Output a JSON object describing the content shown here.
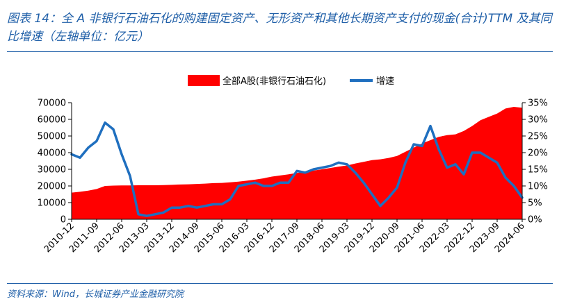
{
  "header": {
    "title": "图表 14：全 A 非银行石油石化的购建固定资产、无形资产和其他长期资产支付的现金(合计)TTM 及其同比增速（左轴单位：亿元）"
  },
  "footer": {
    "source": "资料来源：Wind，长城证券产业金融研究院"
  },
  "colors": {
    "area": "#ff0000",
    "line": "#1f6fbf",
    "accent": "#1f5fa8"
  },
  "chart_data": {
    "type": "area",
    "legend_position": "top",
    "grid": false,
    "x_tick_labels": [
      "2010-12",
      "2011-09",
      "2012-06",
      "2013-03",
      "2013-12",
      "2014-09",
      "2015-06",
      "2016-03",
      "2016-12",
      "2017-09",
      "2018-06",
      "2019-03",
      "2019-12",
      "2020-09",
      "2021-06",
      "2022-03",
      "2022-12",
      "2023-09",
      "2024-06"
    ],
    "y_left": {
      "min": 0,
      "max": 70000,
      "ticks": [
        "0",
        "10000",
        "20000",
        "30000",
        "40000",
        "50000",
        "60000",
        "70000"
      ]
    },
    "y_right": {
      "min": 0,
      "max": 35,
      "ticks": [
        "0%",
        "5%",
        "10%",
        "15%",
        "20%",
        "25%",
        "30%",
        "35%"
      ]
    },
    "x": [
      "2010-12",
      "2011-03",
      "2011-06",
      "2011-09",
      "2011-12",
      "2012-03",
      "2012-06",
      "2012-09",
      "2012-12",
      "2013-03",
      "2013-06",
      "2013-09",
      "2013-12",
      "2014-03",
      "2014-06",
      "2014-09",
      "2014-12",
      "2015-03",
      "2015-06",
      "2015-09",
      "2015-12",
      "2016-03",
      "2016-06",
      "2016-09",
      "2016-12",
      "2017-03",
      "2017-06",
      "2017-09",
      "2017-12",
      "2018-03",
      "2018-06",
      "2018-09",
      "2018-12",
      "2019-03",
      "2019-06",
      "2019-09",
      "2019-12",
      "2020-03",
      "2020-06",
      "2020-09",
      "2020-12",
      "2021-03",
      "2021-06",
      "2021-09",
      "2021-12",
      "2022-03",
      "2022-06",
      "2022-09",
      "2022-12",
      "2023-03",
      "2023-06",
      "2023-09",
      "2023-12",
      "2024-03",
      "2024-06"
    ],
    "series": [
      {
        "name": "全部A股(非银行石油石化)",
        "axis": "left",
        "type": "area",
        "values": [
          16000,
          16500,
          17200,
          18200,
          20000,
          20200,
          20300,
          20300,
          20400,
          20400,
          20400,
          20500,
          20700,
          20900,
          21000,
          21200,
          21400,
          21700,
          21800,
          22200,
          22600,
          23200,
          23800,
          24600,
          25600,
          26300,
          27000,
          27800,
          28600,
          29200,
          30000,
          30800,
          31600,
          32300,
          33500,
          34500,
          35500,
          36000,
          36800,
          38000,
          40500,
          43000,
          45500,
          47500,
          49500,
          50500,
          51000,
          53000,
          56000,
          59500,
          61500,
          63500,
          66500,
          67500,
          67000
        ]
      },
      {
        "name": "增速",
        "axis": "right",
        "type": "line",
        "values": [
          19.5,
          18.5,
          21.5,
          23.5,
          29,
          27,
          19.5,
          13,
          1.5,
          1,
          1.5,
          2,
          3.5,
          3.5,
          4,
          3.5,
          4,
          4.5,
          4.5,
          6,
          10,
          10.5,
          11,
          10,
          10,
          11,
          11,
          14.5,
          14,
          15,
          15.5,
          16,
          17,
          16.5,
          14,
          11,
          7.5,
          4,
          6.5,
          9.5,
          17,
          22.5,
          22,
          28,
          21,
          15.5,
          16.5,
          13.5,
          20,
          20,
          18.5,
          17,
          12.5,
          10,
          6.5
        ]
      }
    ]
  }
}
